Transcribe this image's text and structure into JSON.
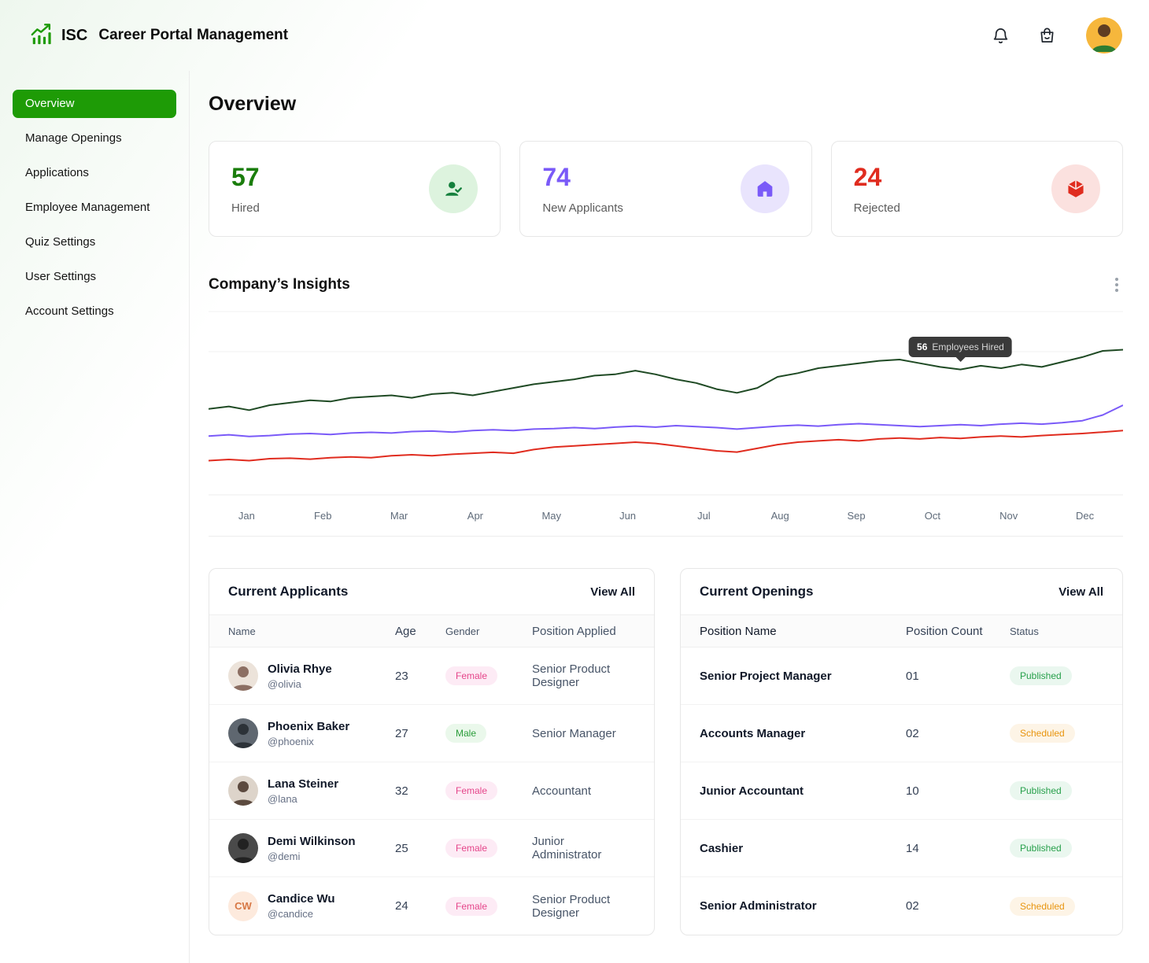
{
  "colors": {
    "accent": "#1e9b06",
    "stat-green": "#1a7d0c",
    "purple": "#7a5af8",
    "red": "#e02c1f"
  },
  "header": {
    "brand": "ISC",
    "title": "Career Portal Management"
  },
  "sidebar": {
    "items": [
      {
        "label": "Overview"
      },
      {
        "label": "Manage Openings"
      },
      {
        "label": "Applications"
      },
      {
        "label": "Employee Management"
      },
      {
        "label": "Quiz Settings"
      },
      {
        "label": "User Settings"
      },
      {
        "label": "Account Settings"
      }
    ]
  },
  "page": {
    "title": "Overview"
  },
  "stats": [
    {
      "value": "57",
      "label": "Hired"
    },
    {
      "value": "74",
      "label": "New Applicants"
    },
    {
      "value": "24",
      "label": "Rejected"
    }
  ],
  "insights": {
    "title": "Company’s Insights"
  },
  "chart_data": {
    "type": "line",
    "x": [
      "Jan",
      "Feb",
      "Mar",
      "Apr",
      "May",
      "Jun",
      "Jul",
      "Aug",
      "Sep",
      "Oct",
      "Nov",
      "Dec"
    ],
    "ylim": [
      8,
      75
    ],
    "grid": "horizontal-light",
    "legend": "none",
    "series": [
      {
        "name": "Employees Hired",
        "color": "#1f4a24",
        "values": [
          40,
          41,
          39.5,
          41.5,
          42.5,
          43.5,
          43,
          44.5,
          45,
          45.5,
          44.5,
          46,
          46.5,
          45.5,
          47,
          48.5,
          50,
          51,
          52,
          53.5,
          54,
          55.5,
          54,
          52,
          50.5,
          48,
          46.5,
          48.5,
          53,
          54.5,
          56.5,
          57.5,
          58.5,
          59.5,
          60,
          58.5,
          57,
          56,
          57.5,
          56.5,
          58,
          57,
          59,
          61,
          63.5,
          64
        ]
      },
      {
        "name": "New Applicants",
        "color": "#7a5af8",
        "values": [
          29,
          29.5,
          28.8,
          29.2,
          29.8,
          30,
          29.6,
          30.2,
          30.5,
          30.2,
          30.8,
          31,
          30.6,
          31.2,
          31.5,
          31.2,
          31.8,
          32,
          32.4,
          32,
          32.6,
          33,
          32.6,
          33.2,
          32.8,
          32.4,
          31.8,
          32.4,
          33,
          33.4,
          33,
          33.6,
          34,
          33.6,
          33.2,
          32.8,
          33.2,
          33.6,
          33.2,
          33.8,
          34.2,
          33.8,
          34.4,
          35.2,
          37.5,
          41.5
        ]
      },
      {
        "name": "Rejected",
        "color": "#e02c1f",
        "values": [
          19,
          19.5,
          19,
          19.8,
          20,
          19.6,
          20.2,
          20.5,
          20.2,
          21,
          21.4,
          21,
          21.6,
          22,
          22.4,
          22,
          23.5,
          24.5,
          25,
          25.5,
          26,
          26.5,
          26,
          25,
          24,
          23,
          22.5,
          24,
          25.5,
          26.5,
          27,
          27.5,
          27,
          27.8,
          28.2,
          27.8,
          28.4,
          28,
          28.6,
          29,
          28.6,
          29.2,
          29.6,
          30,
          30.6,
          31.2
        ]
      }
    ],
    "annotation": {
      "value": "56",
      "label": "Employees Hired",
      "series_index": 0,
      "point_index": 37
    }
  },
  "applicants": {
    "title": "Current Applicants",
    "view_all": "View All",
    "columns": {
      "name": "Name",
      "age": "Age",
      "gender": "Gender",
      "position": "Position Applied"
    },
    "rows": [
      {
        "name": "Olivia Rhye",
        "handle": "@olivia",
        "age": "23",
        "gender": "Female",
        "position": "Senior Product Designer"
      },
      {
        "name": "Phoenix Baker",
        "handle": "@phoenix",
        "age": "27",
        "gender": "Male",
        "position": "Senior Manager"
      },
      {
        "name": "Lana Steiner",
        "handle": "@lana",
        "age": "32",
        "gender": "Female",
        "position": "Accountant"
      },
      {
        "name": "Demi Wilkinson",
        "handle": "@demi",
        "age": "25",
        "gender": "Female",
        "position": "Junior Administrator"
      },
      {
        "name": "Candice Wu",
        "handle": "@candice",
        "age": "24",
        "gender": "Female",
        "position": "Senior Product Designer",
        "initials": "CW"
      }
    ]
  },
  "openings": {
    "title": "Current Openings",
    "view_all": "View All",
    "columns": {
      "position": "Position Name",
      "count": "Position Count",
      "status": "Status"
    },
    "rows": [
      {
        "position": "Senior Project Manager",
        "count": "01",
        "status": "Published"
      },
      {
        "position": "Accounts Manager",
        "count": "02",
        "status": "Scheduled"
      },
      {
        "position": "Junior Accountant",
        "count": "10",
        "status": "Published"
      },
      {
        "position": "Cashier",
        "count": "14",
        "status": "Published"
      },
      {
        "position": "Senior Administrator",
        "count": "02",
        "status": "Scheduled"
      }
    ]
  }
}
